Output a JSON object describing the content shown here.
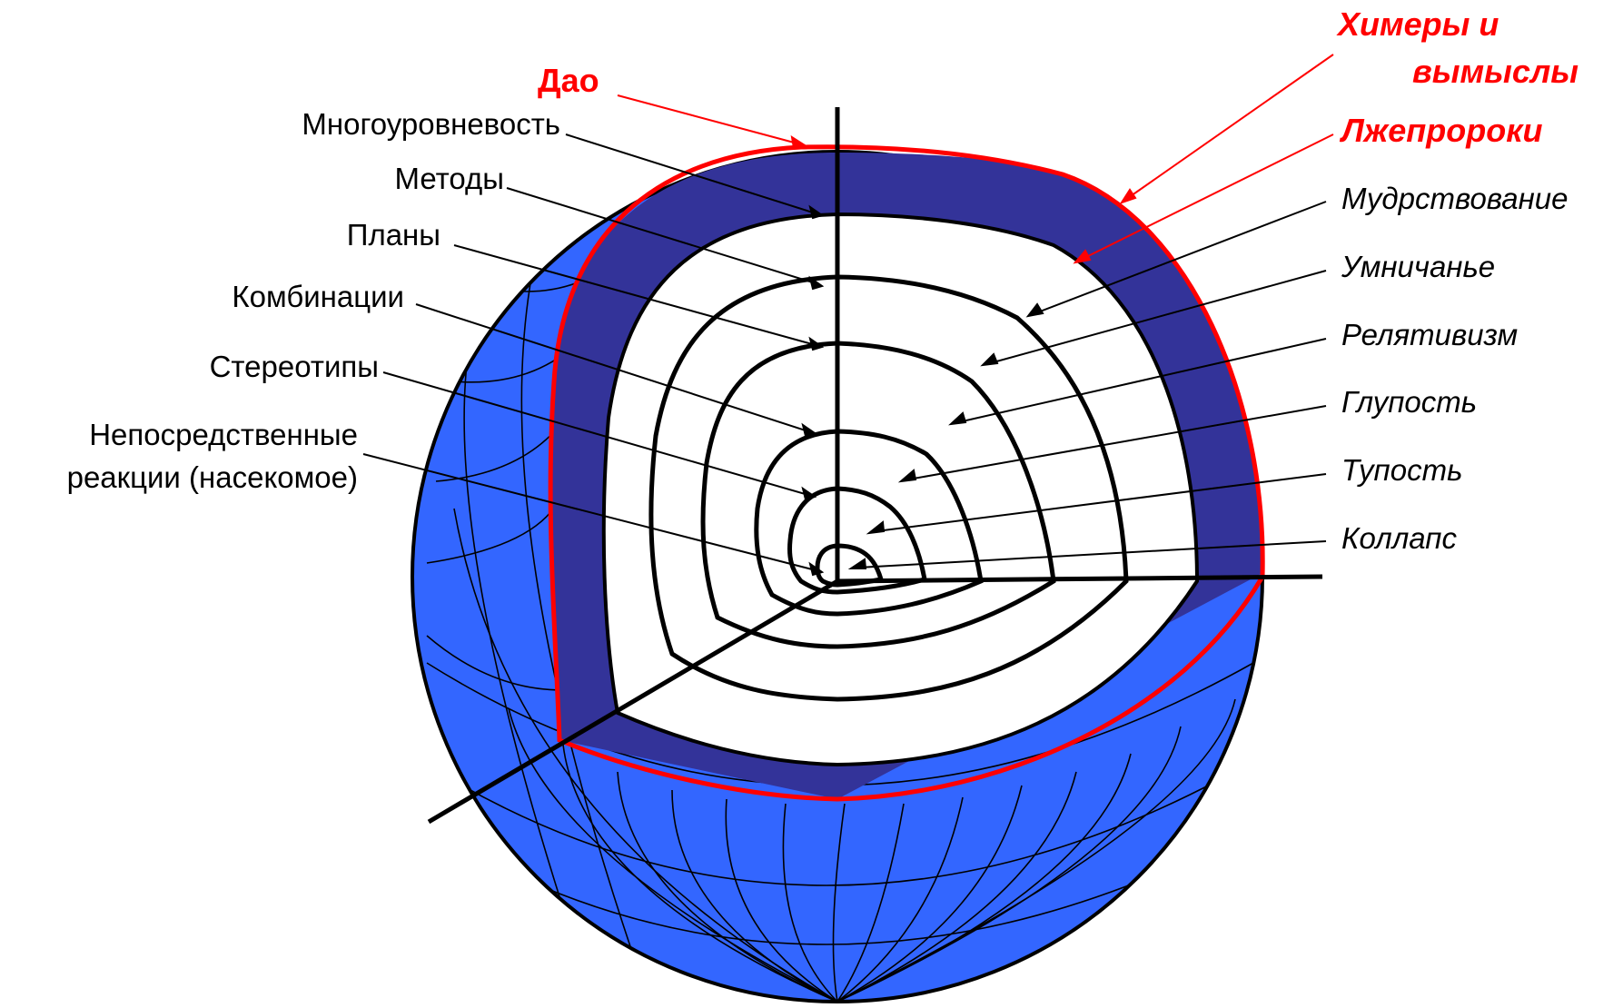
{
  "diagram": {
    "colors": {
      "sphere": "#3366ff",
      "shell": "#333399",
      "outline_red": "#ff0000",
      "lines": "#000000",
      "inner": "#ffffff"
    },
    "left_labels": {
      "multilevel": "Многоуровневость",
      "methods": "Методы",
      "plans": "Планы",
      "combinations": "Комбинации",
      "stereotypes": "Стереотипы",
      "direct_line1": "Непосредственные",
      "direct_line2": "реакции  (насекомое)"
    },
    "right_labels": {
      "wisdom": "Мудрствование",
      "smartness": "Умничанье",
      "relativism": "Релятивизм",
      "stupidity": "Глупость",
      "dullness": "Тупость",
      "collapse": "Коллапс"
    },
    "red_labels": {
      "dao": "Дао",
      "chimeras_line1": "Химеры и",
      "chimeras_line2": "вымыслы",
      "false_prophets": "Лжепророки"
    }
  }
}
